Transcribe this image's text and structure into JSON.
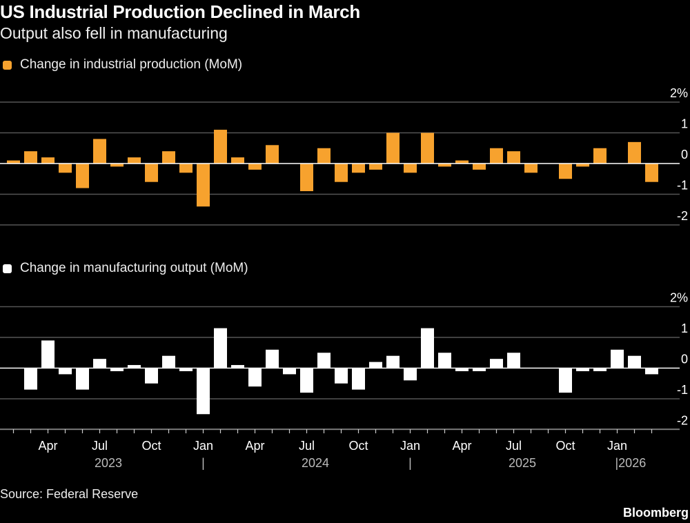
{
  "header": {
    "title": "US Industrial Production Declined in March",
    "subtitle": "Output also fell in manufacturing"
  },
  "footer": {
    "source": "Source: Federal Reserve",
    "brand": "Bloomberg"
  },
  "colors": {
    "background": "#000000",
    "industrial": "#F7A22E",
    "manufacturing": "#FFFFFF",
    "grid": "#555555"
  },
  "chart_data": [
    {
      "type": "bar",
      "legend": "Change in industrial production (MoM)",
      "x_start": "2023-02",
      "x_end": "2026-03",
      "frequency": "monthly",
      "y_ticks": [
        "2%",
        "1",
        "0",
        "-1",
        "-2"
      ],
      "ylim": [
        -2,
        2
      ],
      "grid": true,
      "values": [
        0.1,
        0.4,
        0.2,
        -0.3,
        -0.8,
        0.8,
        -0.1,
        0.2,
        -0.6,
        0.4,
        -0.3,
        -1.4,
        1.1,
        0.2,
        -0.2,
        0.6,
        0.0,
        -0.9,
        0.5,
        -0.6,
        -0.3,
        -0.2,
        1.0,
        -0.3,
        1.0,
        -0.1,
        0.1,
        -0.2,
        0.5,
        0.4,
        -0.3,
        0.0,
        -0.5,
        -0.1,
        0.5,
        0.0,
        0.7,
        -0.6
      ]
    },
    {
      "type": "bar",
      "legend": "Change in manufacturing output (MoM)",
      "x_start": "2023-02",
      "x_end": "2026-03",
      "frequency": "monthly",
      "y_ticks": [
        "2%",
        "1",
        "0",
        "-1",
        "-2"
      ],
      "ylim": [
        -2,
        2
      ],
      "grid": true,
      "x_tick_labels": [
        "Apr",
        "Jul",
        "Oct",
        "Jan",
        "Apr",
        "Jul",
        "Oct",
        "Jan",
        "Apr",
        "Jul",
        "Oct",
        "Jan"
      ],
      "year_labels": [
        "2023",
        "|",
        "2024",
        "|",
        "2025",
        "|2026"
      ],
      "values": [
        0.0,
        -0.7,
        0.9,
        -0.2,
        -0.7,
        0.3,
        -0.1,
        0.1,
        -0.5,
        0.4,
        -0.1,
        -1.5,
        1.3,
        0.1,
        -0.6,
        0.6,
        -0.2,
        -0.8,
        0.5,
        -0.5,
        -0.7,
        0.2,
        0.4,
        -0.4,
        1.3,
        0.5,
        -0.1,
        -0.1,
        0.3,
        0.5,
        0.0,
        0.0,
        -0.8,
        -0.1,
        -0.1,
        0.6,
        0.4,
        -0.2
      ]
    }
  ]
}
